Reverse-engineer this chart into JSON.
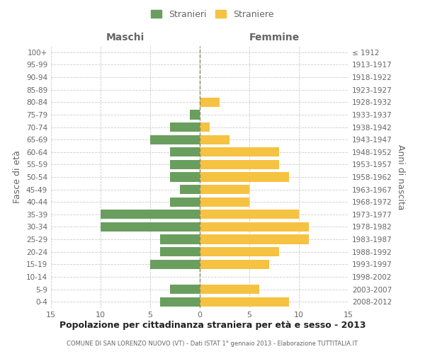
{
  "age_groups": [
    "100+",
    "95-99",
    "90-94",
    "85-89",
    "80-84",
    "75-79",
    "70-74",
    "65-69",
    "60-64",
    "55-59",
    "50-54",
    "45-49",
    "40-44",
    "35-39",
    "30-34",
    "25-29",
    "20-24",
    "15-19",
    "10-14",
    "5-9",
    "0-4"
  ],
  "birth_years": [
    "≤ 1912",
    "1913-1917",
    "1918-1922",
    "1923-1927",
    "1928-1932",
    "1933-1937",
    "1938-1942",
    "1943-1947",
    "1948-1952",
    "1953-1957",
    "1958-1962",
    "1963-1967",
    "1968-1972",
    "1973-1977",
    "1978-1982",
    "1983-1987",
    "1988-1992",
    "1993-1997",
    "1998-2002",
    "2003-2007",
    "2008-2012"
  ],
  "maschi": [
    0,
    0,
    0,
    0,
    0,
    1,
    3,
    5,
    3,
    3,
    3,
    2,
    3,
    10,
    10,
    4,
    4,
    5,
    0,
    3,
    4
  ],
  "femmine": [
    0,
    0,
    0,
    0,
    2,
    0,
    1,
    3,
    8,
    8,
    9,
    5,
    5,
    10,
    11,
    11,
    8,
    7,
    0,
    6,
    9
  ],
  "maschi_color": "#6a9e5e",
  "femmine_color": "#f5c242",
  "title": "Popolazione per cittadinanza straniera per età e sesso - 2013",
  "subtitle": "COMUNE DI SAN LORENZO NUOVO (VT) - Dati ISTAT 1° gennaio 2013 - Elaborazione TUTTITALIA.IT",
  "xlabel_left": "Maschi",
  "xlabel_right": "Femmine",
  "ylabel_left": "Fasce di età",
  "ylabel_right": "Anni di nascita",
  "legend_maschi": "Stranieri",
  "legend_femmine": "Straniere",
  "xlim": 15,
  "background_color": "#ffffff",
  "grid_color": "#cccccc",
  "text_color": "#666666"
}
